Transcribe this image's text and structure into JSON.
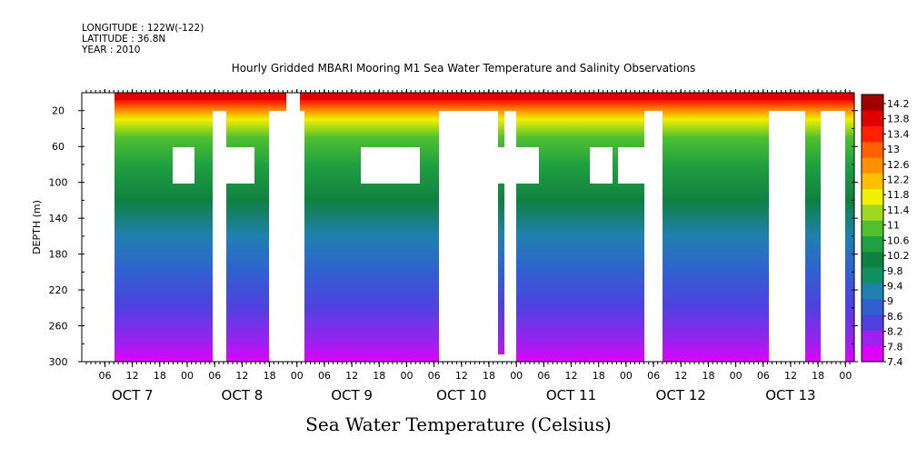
{
  "header": {
    "longitude": "LONGITUDE : 122W(-122)",
    "latitude": "LATITUDE : 36.8N",
    "year": "YEAR : 2010"
  },
  "colors": {
    "palette": [
      "#e000ff",
      "#a020f0",
      "#5040e0",
      "#3060d0",
      "#2080b0",
      "#109060",
      "#108040",
      "#20a040",
      "#50c030",
      "#a0d820",
      "#f0f000",
      "#ffc000",
      "#ff9000",
      "#ff6000",
      "#ff2000",
      "#e00000",
      "#a00000"
    ],
    "gaps": "#ffffff"
  },
  "chart_data": {
    "type": "heatmap",
    "title": "Hourly Gridded MBARI Mooring M1 Sea Water Temperature and Salinity Observations",
    "xlabel": "",
    "ylabel": "DEPTH (m)",
    "footer": "Sea Water Temperature (Celsius)",
    "ylim": [
      300,
      0
    ],
    "y_ticks": [
      20,
      60,
      100,
      140,
      180,
      220,
      260,
      300
    ],
    "x_ticks": [
      "06",
      "12",
      "18",
      "00",
      "06",
      "12",
      "18",
      "00",
      "06",
      "12",
      "18",
      "00",
      "06",
      "12",
      "18",
      "00",
      "06",
      "12",
      "18",
      "00",
      "06",
      "12",
      "18",
      "00",
      "06",
      "12",
      "18",
      "00"
    ],
    "x_day_labels": [
      "OCT  7",
      "OCT  8",
      "OCT  9",
      "OCT 10",
      "OCT 11",
      "OCT 12",
      "OCT 13"
    ],
    "colorbar_labels": [
      "14.2",
      "13.8",
      "13.4",
      "13",
      "12.6",
      "12.2",
      "11.8",
      "11.4",
      "11",
      "10.6",
      "10.2",
      "9.8",
      "9.4",
      "9",
      "8.6",
      "8.2",
      "7.8",
      "7.4"
    ],
    "colorbar_range": [
      7.4,
      14.4
    ],
    "depth_profile": [
      {
        "depth": 5,
        "value": 13.8
      },
      {
        "depth": 10,
        "value": 13.2
      },
      {
        "depth": 20,
        "value": 12.4
      },
      {
        "depth": 30,
        "value": 11.6
      },
      {
        "depth": 50,
        "value": 10.9
      },
      {
        "depth": 80,
        "value": 10.4
      },
      {
        "depth": 120,
        "value": 9.9
      },
      {
        "depth": 160,
        "value": 9.3
      },
      {
        "depth": 200,
        "value": 8.9
      },
      {
        "depth": 240,
        "value": 8.5
      },
      {
        "depth": 280,
        "value": 8.1
      },
      {
        "depth": 300,
        "value": 7.8
      }
    ]
  }
}
